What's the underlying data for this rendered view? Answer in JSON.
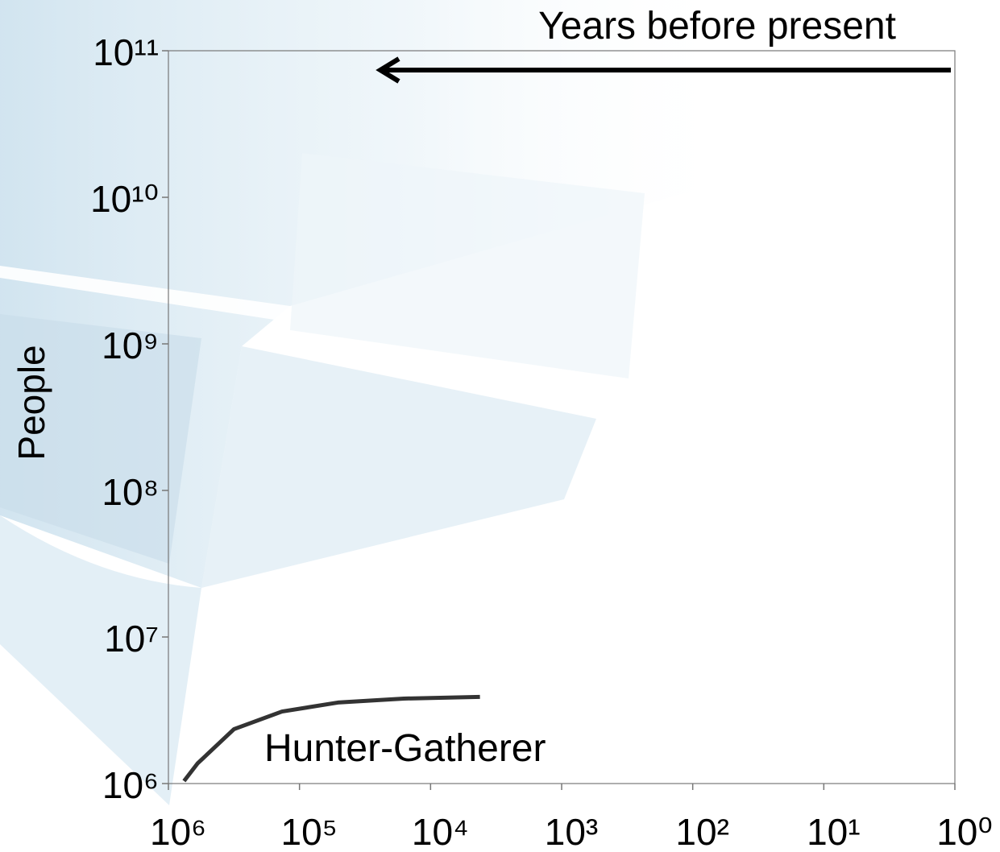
{
  "chart_data": {
    "type": "line",
    "x_label": "Years before present",
    "y_label": "People",
    "annotation": "Hunter-Gatherer",
    "xlog": true,
    "ylog": true,
    "xlim": [
      1000000,
      1
    ],
    "ylim": [
      1000000,
      100000000000
    ],
    "xticks": [
      {
        "value": 1000000,
        "label": "10⁶"
      },
      {
        "value": 100000,
        "label": "10⁵"
      },
      {
        "value": 10000,
        "label": "10⁴"
      },
      {
        "value": 1000,
        "label": "10³"
      },
      {
        "value": 100,
        "label": "10²"
      },
      {
        "value": 10,
        "label": "10¹"
      },
      {
        "value": 1,
        "label": "10⁰"
      }
    ],
    "yticks": [
      {
        "value": 1000000,
        "label": "10⁶"
      },
      {
        "value": 10000000,
        "label": "10⁷"
      },
      {
        "value": 100000000,
        "label": "10⁸"
      },
      {
        "value": 1000000000,
        "label": "10⁹"
      },
      {
        "value": 10000000000,
        "label": "10¹⁰"
      },
      {
        "value": 100000000000,
        "label": "10¹¹"
      }
    ],
    "x": [
      760000,
      600000,
      316000,
      136000,
      51000,
      16000,
      4200
    ],
    "series": [
      {
        "color": "#333333",
        "values": [
          1040000,
          1370000,
          2350000,
          3100000,
          3570000,
          3800000,
          3900000
        ]
      }
    ]
  }
}
